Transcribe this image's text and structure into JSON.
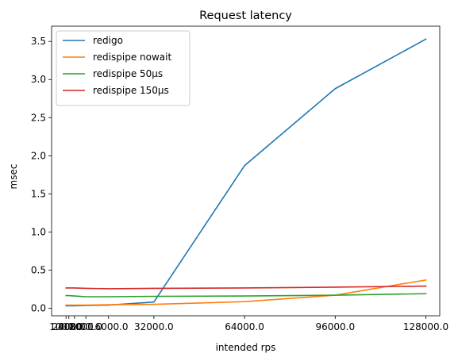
{
  "chart_data": {
    "type": "line",
    "title": "Request latency",
    "xlabel": "intended rps",
    "ylabel": "msec",
    "xlim": [
      -4100,
      132900
    ],
    "ylim": [
      -0.1,
      3.7
    ],
    "x": [
      1000,
      2000,
      4000,
      8000,
      16000,
      32000,
      64000,
      96000,
      128000
    ],
    "xtick_labels": [
      "1000.0",
      "2000.0",
      "4000.0",
      "8000.0",
      "16000.0",
      "32000.0",
      "64000.0",
      "96000.0",
      "128000.0"
    ],
    "yticks": [
      0.0,
      0.5,
      1.0,
      1.5,
      2.0,
      2.5,
      3.0,
      3.5
    ],
    "ytick_labels": [
      "0.0",
      "0.5",
      "1.0",
      "1.5",
      "2.0",
      "2.5",
      "3.0",
      "3.5"
    ],
    "grid": false,
    "legend_position": "top-left",
    "series": [
      {
        "name": "redigo",
        "color": "#1f77b4",
        "values": [
          0.03,
          0.03,
          0.03,
          0.035,
          0.04,
          0.08,
          1.87,
          2.88,
          3.53
        ]
      },
      {
        "name": "redispipe nowait",
        "color": "#ff7f0e",
        "values": [
          0.04,
          0.04,
          0.04,
          0.04,
          0.045,
          0.05,
          0.085,
          0.17,
          0.37
        ]
      },
      {
        "name": "redispipe 50µs",
        "color": "#2ca02c",
        "values": [
          0.165,
          0.165,
          0.16,
          0.15,
          0.15,
          0.155,
          0.16,
          0.17,
          0.19
        ]
      },
      {
        "name": "redispipe 150µs",
        "color": "#d62728",
        "values": [
          0.265,
          0.265,
          0.265,
          0.26,
          0.255,
          0.26,
          0.265,
          0.275,
          0.29
        ]
      }
    ]
  }
}
